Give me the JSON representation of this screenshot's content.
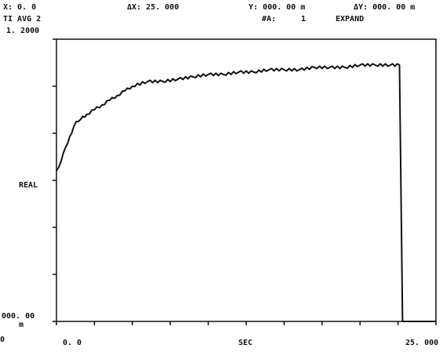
{
  "header": {
    "x_readout": "X: 0. 0",
    "dx_readout": "ΔX: 25. 000",
    "y_readout": "Y: 000. 00 m",
    "dy_readout": "ΔY: 000. 00 m",
    "trace_mode": "TI AVG 2",
    "avg_label": "#A:",
    "avg_count": "1",
    "expand_label": "EXPAND"
  },
  "colors": {
    "trace": "#111111",
    "frame": "#111111",
    "background": "#ffffff"
  },
  "chart_data": {
    "type": "line",
    "title": "",
    "xlabel": "SEC",
    "ylabel": "REAL",
    "x_tick_labels": [
      "0. 0",
      "25. 000"
    ],
    "y_tick_labels": [
      "1. 2000",
      "000. 00"
    ],
    "y_bottom_unit": "m",
    "left_edge_marker": "0",
    "xlim": [
      0,
      25
    ],
    "ylim": [
      0,
      1.2
    ],
    "grid": false,
    "series": [
      {
        "x": [
          0,
          0.3,
          0.6,
          1.0,
          1.3,
          1.6,
          2.0,
          2.5,
          3.0,
          3.5,
          4.0,
          4.5,
          5.0,
          6.0,
          7.0,
          8.0,
          9.0,
          10.0,
          11.0,
          12.0,
          13.0,
          14.0,
          15.0,
          16.0,
          17.0,
          18.0,
          19.0,
          20.0,
          21.0,
          22.0,
          22.6,
          22.8,
          23.0,
          25.0
        ],
        "y": [
          0.64,
          0.68,
          0.74,
          0.8,
          0.85,
          0.86,
          0.88,
          0.9,
          0.92,
          0.94,
          0.96,
          0.98,
          1.0,
          1.02,
          1.02,
          1.03,
          1.04,
          1.05,
          1.05,
          1.06,
          1.06,
          1.07,
          1.07,
          1.07,
          1.08,
          1.08,
          1.08,
          1.09,
          1.09,
          1.09,
          1.09,
          0.0,
          0.0,
          0.0
        ]
      }
    ]
  }
}
